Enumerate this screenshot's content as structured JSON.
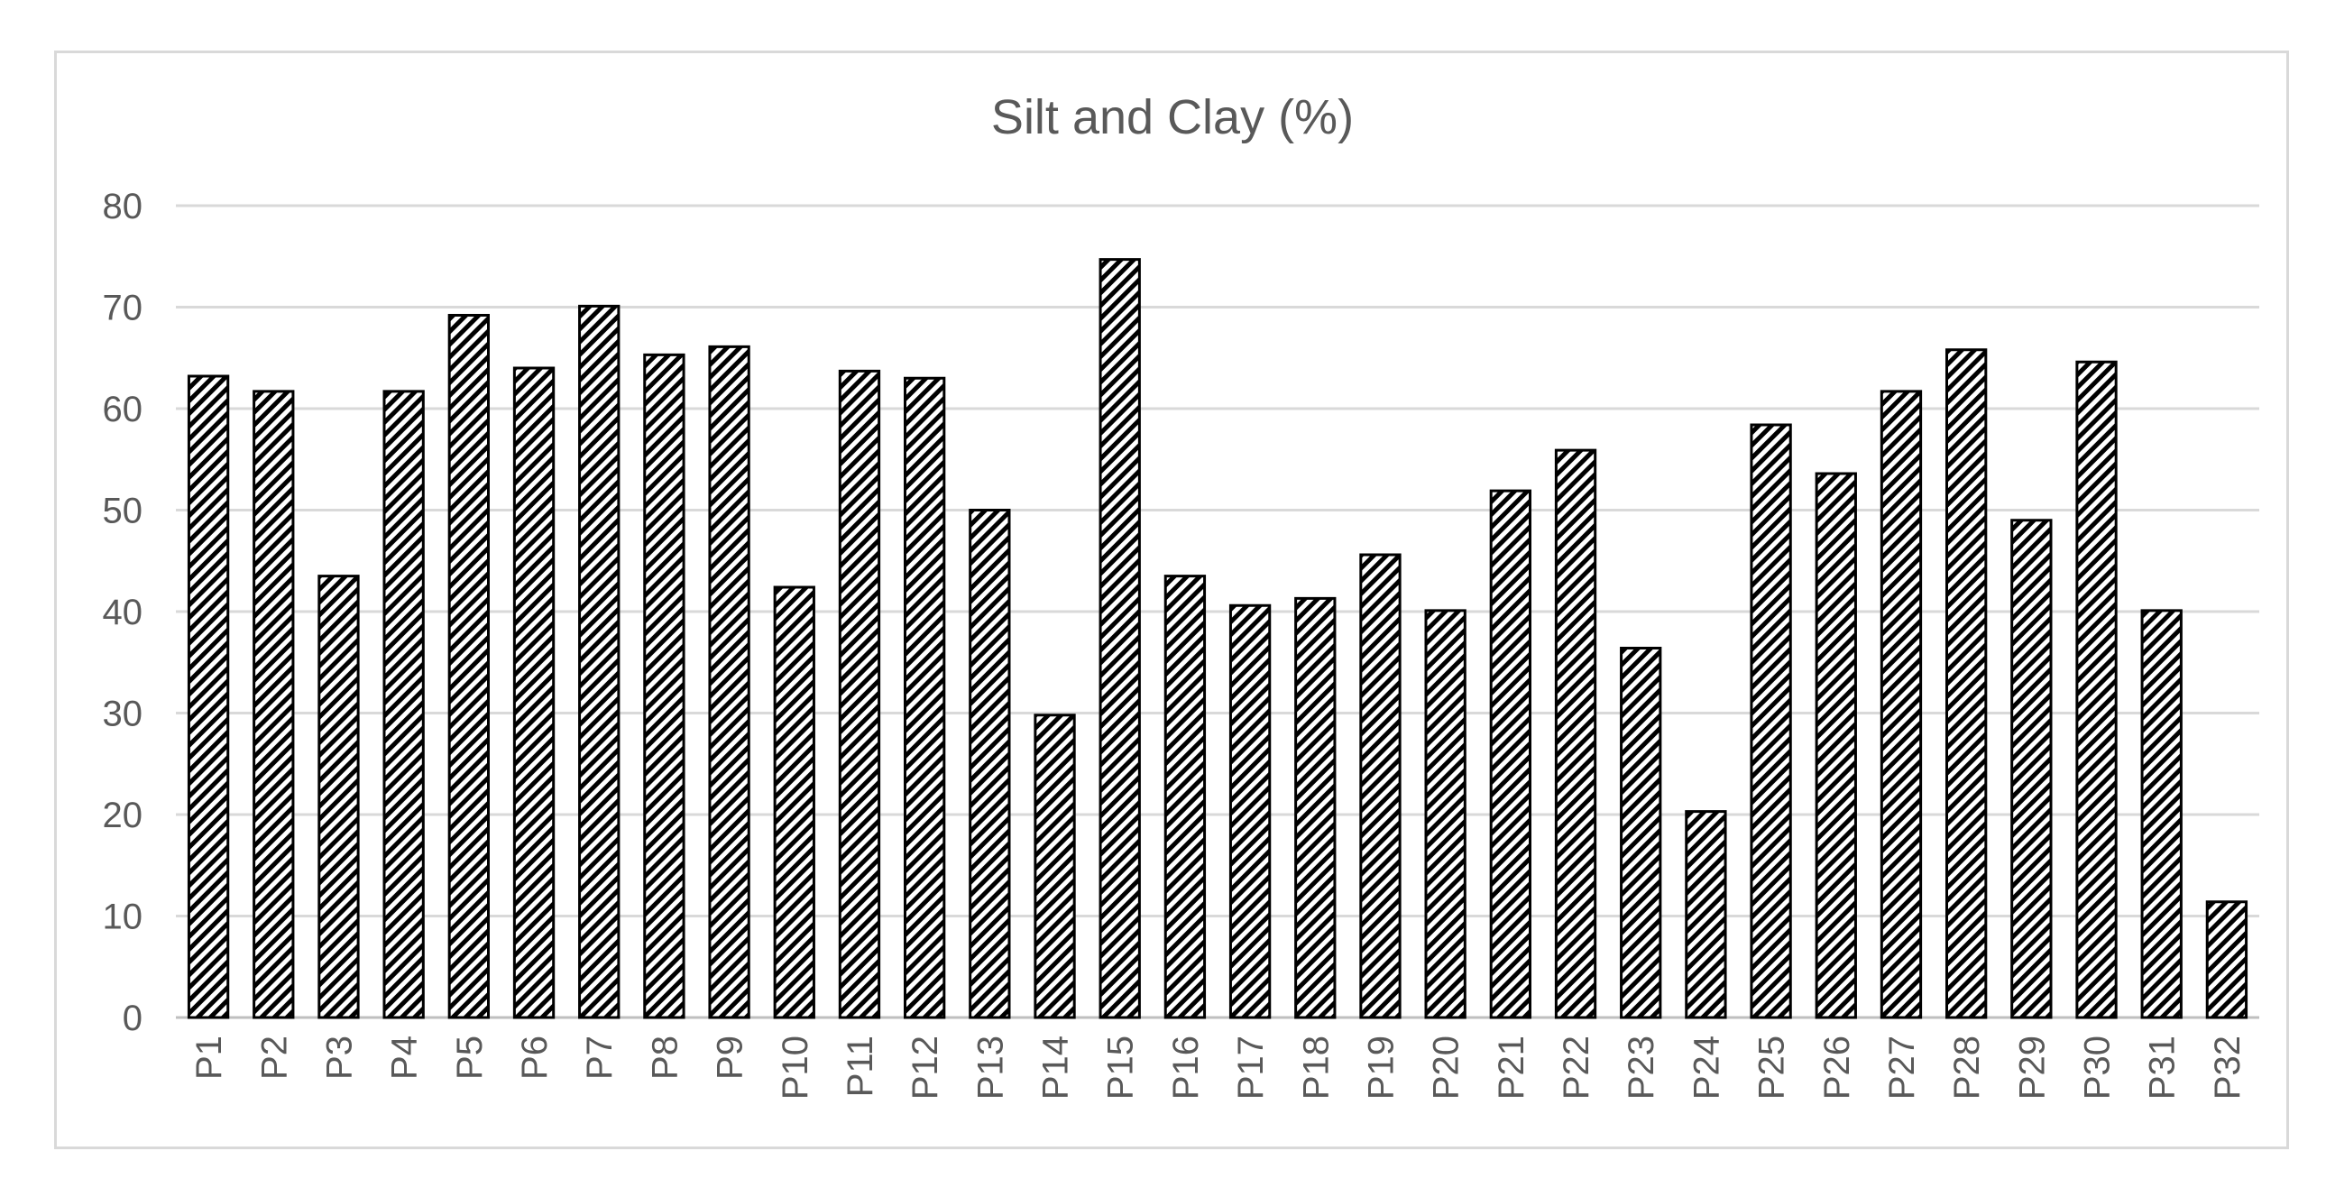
{
  "chart_data": {
    "type": "bar",
    "title": "Silt and Clay (%)",
    "xlabel": "",
    "ylabel": "",
    "ylim": [
      0,
      80
    ],
    "yticks": [
      0,
      10,
      20,
      30,
      40,
      50,
      60,
      70,
      80
    ],
    "grid": true,
    "legend": "none",
    "categories": [
      "P1",
      "P2",
      "P3",
      "P4",
      "P5",
      "P6",
      "P7",
      "P8",
      "P9",
      "P10",
      "P11",
      "P12",
      "P13",
      "P14",
      "P15",
      "P16",
      "P17",
      "P18",
      "P19",
      "P20",
      "P21",
      "P22",
      "P23",
      "P24",
      "P25",
      "P26",
      "P27",
      "P28",
      "P29",
      "P30",
      "P31",
      "P32"
    ],
    "values": [
      63.2,
      61.7,
      43.5,
      61.7,
      69.2,
      64.0,
      70.1,
      65.3,
      66.1,
      42.4,
      63.7,
      63.0,
      50.0,
      29.8,
      74.7,
      43.5,
      40.6,
      41.3,
      45.6,
      40.1,
      51.9,
      55.9,
      36.4,
      20.3,
      58.4,
      53.6,
      61.7,
      65.8,
      49.0,
      64.6,
      40.1,
      11.4
    ],
    "colors": {
      "bar_stroke": "#000000",
      "bar_fill_pattern": "diagonal-hatch",
      "grid": "#d9d9d9",
      "text": "#595959"
    }
  }
}
